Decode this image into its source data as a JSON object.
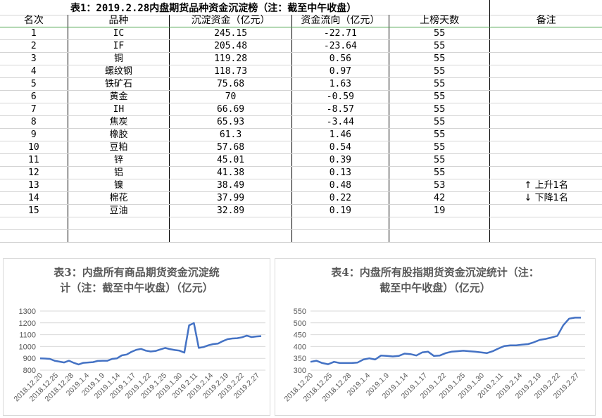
{
  "table": {
    "title": "表1：2019.2.28内盘期货品种资金沉淀榜（注：截至中午收盘）",
    "headers": [
      "名次",
      "品种",
      "沉淀资金（亿元）",
      "资金流向（亿元）",
      "上榜天数",
      "备注"
    ],
    "rows": [
      [
        "1",
        "IC",
        "245.15",
        "-22.71",
        "55",
        ""
      ],
      [
        "2",
        "IF",
        "205.48",
        "-23.64",
        "55",
        ""
      ],
      [
        "3",
        "铜",
        "119.28",
        "0.56",
        "55",
        ""
      ],
      [
        "4",
        "螺纹钢",
        "118.73",
        "0.97",
        "55",
        ""
      ],
      [
        "5",
        "铁矿石",
        "75.68",
        "1.63",
        "55",
        ""
      ],
      [
        "6",
        "黄金",
        "70",
        "-0.59",
        "55",
        ""
      ],
      [
        "7",
        "IH",
        "66.69",
        "-8.57",
        "55",
        ""
      ],
      [
        "8",
        "焦炭",
        "65.93",
        "-3.44",
        "55",
        ""
      ],
      [
        "9",
        "橡胶",
        "61.3",
        "1.46",
        "55",
        ""
      ],
      [
        "10",
        "豆粕",
        "57.68",
        "0.54",
        "55",
        ""
      ],
      [
        "11",
        "锌",
        "45.01",
        "0.39",
        "55",
        ""
      ],
      [
        "12",
        "铝",
        "41.38",
        "0.13",
        "55",
        ""
      ],
      [
        "13",
        "镍",
        "38.49",
        "0.48",
        "53",
        "上升1名"
      ],
      [
        "14",
        "棉花",
        "37.99",
        "0.22",
        "42",
        "下降1名"
      ],
      [
        "15",
        "豆油",
        "32.89",
        "0.19",
        "19",
        ""
      ]
    ],
    "note_arrows": {
      "13": "up-arrow",
      "14": "down-arrow"
    },
    "empty_rows": 2
  },
  "chart_data": [
    {
      "type": "line",
      "title": "表3：内盘所有商品期货资金沉淀统计（注：截至中午收盘）（亿元）",
      "title_lines": [
        "表3：内盘所有商品期货资金沉淀统",
        "计（注：截至中午收盘）（亿元）"
      ],
      "ylim": [
        800,
        1300
      ],
      "yticks": [
        800,
        900,
        1000,
        1100,
        1200,
        1300
      ],
      "xtick_labels": [
        "2018.12.20",
        "2018.12.25",
        "2018.12.28",
        "2019.1.4",
        "2019.1.9",
        "2019.1.14",
        "2019.1.17",
        "2019.1.22",
        "2019.1.25",
        "2019.1.30",
        "2019.2.11",
        "2019.2.14",
        "2019.2.19",
        "2019.2.22",
        "2019.2.27"
      ],
      "series": [
        {
          "color": "#4472c4",
          "values": [
            900,
            898,
            895,
            880,
            872,
            865,
            880,
            862,
            848,
            862,
            865,
            868,
            878,
            880,
            880,
            895,
            900,
            925,
            932,
            955,
            972,
            980,
            965,
            958,
            962,
            975,
            988,
            978,
            970,
            965,
            948,
            1180,
            1198,
            988,
            995,
            1010,
            1020,
            1025,
            1045,
            1062,
            1068,
            1070,
            1078,
            1092,
            1080,
            1085,
            1088
          ]
        }
      ],
      "grid": true
    },
    {
      "type": "line",
      "title": "表4：内盘所有股指期货资金沉淀统计（注：截至中午收盘）（亿元）",
      "title_lines": [
        "表4：内盘所有股指期货资金沉淀统计（注：",
        "截至中午收盘）（亿元）"
      ],
      "ylim": [
        300,
        550
      ],
      "yticks": [
        300,
        350,
        400,
        450,
        500,
        550
      ],
      "xtick_labels": [
        "2018.12.20",
        "2018.12.25",
        "2018.12.28",
        "2019.1.4",
        "2019.1.9",
        "2019.1.14",
        "2019.1.17",
        "2019.1.22",
        "2019.1.25",
        "2019.1.30",
        "2019.2.11",
        "2019.2.14",
        "2019.2.19",
        "2019.2.22",
        "2019.2.27"
      ],
      "series": [
        {
          "color": "#4472c4",
          "values": [
            335,
            340,
            330,
            325,
            335,
            330,
            330,
            330,
            332,
            345,
            350,
            345,
            362,
            360,
            358,
            360,
            370,
            368,
            362,
            375,
            378,
            360,
            362,
            372,
            378,
            380,
            382,
            380,
            378,
            375,
            372,
            380,
            392,
            402,
            405,
            405,
            408,
            410,
            418,
            428,
            432,
            438,
            445,
            490,
            518,
            522,
            522
          ]
        }
      ],
      "grid": true
    }
  ]
}
